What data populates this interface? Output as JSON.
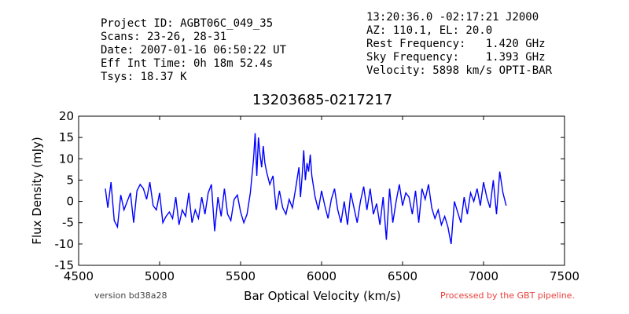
{
  "header": {
    "left_lines": [
      "Project ID: AGBT06C_049_35",
      "Scans: 23-26, 28-31",
      "Date: 2007-01-16 06:50:22 UT",
      "Eff Int Time: 0h 18m 52.4s",
      "Tsys: 18.37 K"
    ],
    "right_lines": [
      "13:20:36.0 -02:17:21 J2000",
      "AZ: 110.1, EL: 20.0",
      "Rest Frequency:   1.420 GHz",
      "Sky Frequency:    1.393 GHz",
      "Velocity: 5898 km/s OPTI-BAR"
    ]
  },
  "footer": {
    "version": "version bd38a28",
    "processed": "Processed by the GBT pipeline.",
    "processed_color": "#e8413c"
  },
  "chart_data": {
    "type": "line",
    "title": "13203685-0217217",
    "xlabel": "Bar Optical Velocity (km/s)",
    "ylabel": "Flux Density (mJy)",
    "xlim": [
      4500,
      7500
    ],
    "ylim": [
      -15,
      20
    ],
    "xticks": [
      4500,
      5000,
      5500,
      6000,
      6500,
      7000,
      7500
    ],
    "yticks": [
      -15,
      -10,
      -5,
      0,
      5,
      10,
      15,
      20
    ],
    "grid": false,
    "line_color": "#0000ff",
    "series": [
      {
        "x": [
          4665,
          4680,
          4700,
          4720,
          4740,
          4760,
          4780,
          4800,
          4820,
          4840,
          4860,
          4880,
          4900,
          4920,
          4940,
          4960,
          4980,
          5000,
          5020,
          5040,
          5060,
          5080,
          5100,
          5120,
          5140,
          5160,
          5180,
          5200,
          5220,
          5240,
          5260,
          5280,
          5300,
          5320,
          5340,
          5360,
          5380,
          5400,
          5420,
          5440,
          5460,
          5480,
          5500,
          5520,
          5540,
          5560,
          5580,
          5590,
          5600,
          5610,
          5620,
          5630,
          5640,
          5650,
          5660,
          5680,
          5700,
          5720,
          5740,
          5760,
          5780,
          5800,
          5820,
          5840,
          5860,
          5870,
          5880,
          5890,
          5900,
          5910,
          5920,
          5930,
          5940,
          5960,
          5980,
          6000,
          6020,
          6040,
          6060,
          6080,
          6100,
          6120,
          6140,
          6160,
          6180,
          6200,
          6220,
          6240,
          6260,
          6280,
          6300,
          6320,
          6340,
          6360,
          6380,
          6400,
          6420,
          6440,
          6460,
          6480,
          6500,
          6520,
          6540,
          6560,
          6580,
          6600,
          6620,
          6640,
          6660,
          6680,
          6700,
          6720,
          6740,
          6760,
          6780,
          6790,
          6800,
          6820,
          6840,
          6860,
          6880,
          6900,
          6920,
          6940,
          6960,
          6980,
          7000,
          7020,
          7040,
          7060,
          7080,
          7100,
          7120,
          7140
        ],
        "y": [
          3,
          -1.5,
          4.5,
          -4.5,
          -6,
          1.5,
          -2,
          0,
          2,
          -5,
          2.5,
          4,
          3,
          0.5,
          4.5,
          -1,
          -2,
          2,
          -5,
          -3.5,
          -2.5,
          -4,
          1,
          -5.5,
          -2,
          -3.5,
          2,
          -5,
          -2,
          -4,
          1,
          -3,
          2,
          4,
          -7,
          1,
          -3.5,
          3,
          -3,
          -4.5,
          0.5,
          1.5,
          -2.5,
          -5,
          -3,
          2,
          10,
          16,
          6,
          15,
          11,
          8,
          13,
          9,
          7,
          4,
          6,
          -2,
          2.5,
          -1.5,
          -3,
          0.5,
          -1.5,
          3,
          8,
          1,
          6,
          12,
          5,
          9,
          7,
          11,
          6,
          1,
          -2,
          2.5,
          -1,
          -4,
          0.5,
          3,
          -2,
          -5,
          0,
          -5.5,
          2,
          -1.5,
          -5,
          0,
          3.5,
          -2,
          3,
          -3,
          -0.5,
          -5.5,
          1,
          -9,
          3,
          -5,
          0,
          4,
          -1,
          2,
          1,
          -3,
          2.5,
          -5,
          3,
          0.5,
          4,
          -1.5,
          -4,
          -2,
          -5.5,
          -3.5,
          -6,
          -8,
          -10,
          0,
          -2.5,
          -5,
          1,
          -3,
          2,
          0,
          3,
          -1,
          4.5,
          1,
          -1.5,
          5,
          -3,
          7,
          2,
          -1
        ]
      }
    ]
  }
}
